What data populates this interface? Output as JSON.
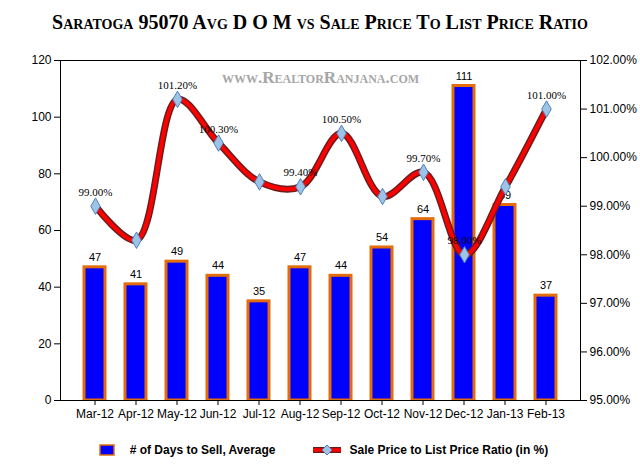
{
  "chart_data": {
    "type": "bar",
    "title": "Saratoga 95070 Avg D O M vs Sale Price To List Price Ratio",
    "subtitle": "www.RealtorRanjana.com",
    "categories": [
      "Mar-12",
      "Apr-12",
      "May-12",
      "Jun-12",
      "Jul-12",
      "Aug-12",
      "Sep-12",
      "Oct-12",
      "Nov-12",
      "Dec-12",
      "Jan-13",
      "Feb-13"
    ],
    "series": [
      {
        "name": "# of Days to Sell, Average",
        "type": "bar",
        "color": "#0000ff",
        "values": [
          47,
          41,
          49,
          44,
          35,
          47,
          44,
          54,
          64,
          111,
          69,
          37
        ]
      },
      {
        "name": "Sale Price to List Price Ratio (in %)",
        "type": "line",
        "axis": "y2",
        "color": "#ff0000",
        "marker": "diamond",
        "values": [
          99.0,
          98.3,
          101.2,
          100.3,
          99.5,
          99.4,
          100.5,
          99.2,
          99.7,
          98.0,
          99.4,
          101.0
        ],
        "value_labels": [
          "99.00%",
          null,
          "101.20%",
          "100.30%",
          null,
          "99.40%",
          "100.50%",
          null,
          "99.70%",
          "98.00%",
          null,
          "101.00%"
        ]
      }
    ],
    "ylim": [
      0,
      120
    ],
    "yticks": [
      0,
      20,
      40,
      60,
      80,
      100,
      120
    ],
    "y2lim": [
      95,
      102
    ],
    "y2ticks": [
      {
        "value": 95,
        "label": "95.00%"
      },
      {
        "value": 96,
        "label": "96.00%"
      },
      {
        "value": 97,
        "label": "97.00%"
      },
      {
        "value": 98,
        "label": "98.00%"
      },
      {
        "value": 99,
        "label": "99.00%"
      },
      {
        "value": 100,
        "label": "100.00%"
      },
      {
        "value": 101,
        "label": "101.00%"
      },
      {
        "value": 102,
        "label": "102.00%"
      }
    ],
    "grid": false,
    "data_labels": true,
    "legend": "bottom"
  }
}
